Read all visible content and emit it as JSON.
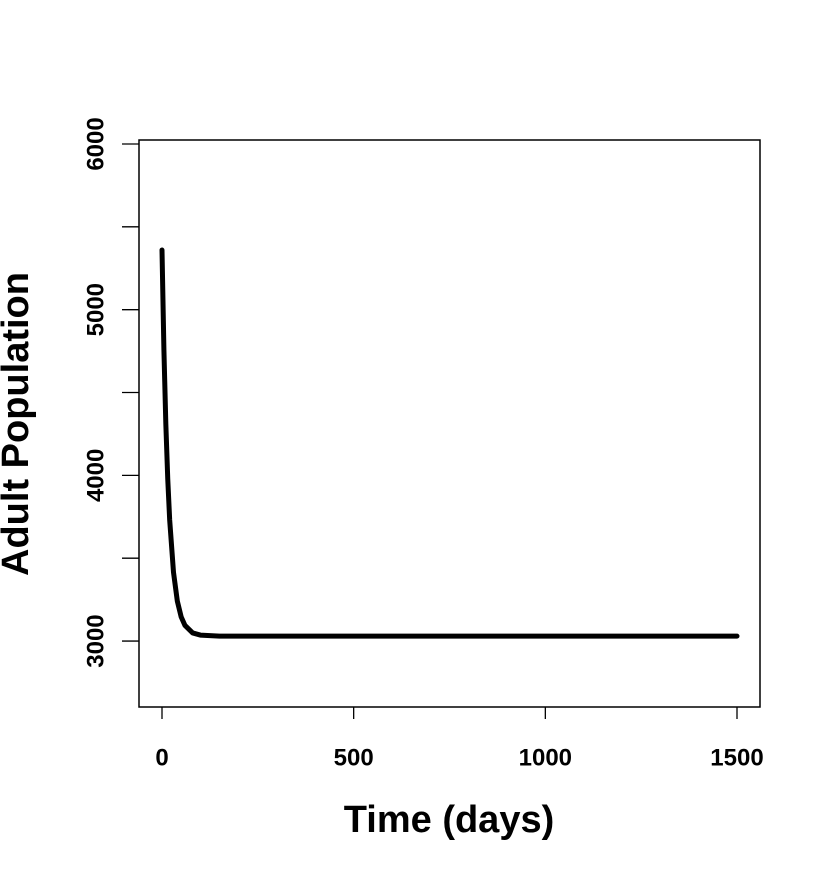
{
  "chart_data": {
    "type": "line",
    "x_label": "Time (days)",
    "y_label": "Adult Population",
    "x": [
      0,
      5,
      10,
      15,
      20,
      30,
      40,
      50,
      60,
      80,
      100,
      150,
      200,
      500,
      1000,
      1500
    ],
    "series": [
      {
        "color": "#000000",
        "values": [
          5360,
          4756,
          4309,
          3978,
          3732,
          3415,
          3241,
          3146,
          3094,
          3049,
          3036,
          3030,
          3030,
          3030,
          3030,
          3030
        ]
      }
    ],
    "xlim": [
      -60,
      1560
    ],
    "xticks": [
      0,
      500,
      1000,
      1500
    ],
    "ylim": [
      2602,
      6024
    ],
    "yticks": [
      3000,
      4000,
      5000,
      6000
    ],
    "yminor_ticks": [
      3500,
      4500,
      5500
    ]
  }
}
